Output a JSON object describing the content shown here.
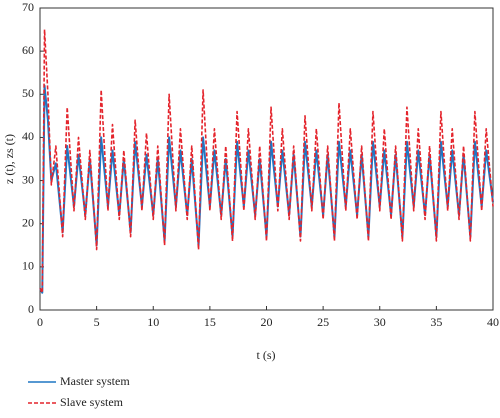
{
  "chart_data": {
    "type": "line",
    "xlabel": "t (s)",
    "ylabel": "z (t), zs (t)",
    "x": [
      0,
      0.2,
      0.4,
      0.7,
      1,
      1.4,
      2,
      2.4,
      3,
      3.4,
      4,
      4.4,
      5,
      5.4,
      6,
      6.4,
      7,
      7.4,
      8,
      8.4,
      9,
      9.4,
      10,
      10.4,
      11,
      11.4,
      12,
      12.4,
      13,
      13.4,
      14,
      14.4,
      15,
      15.4,
      16,
      16.4,
      17,
      17.4,
      18,
      18.4,
      19,
      19.4,
      20,
      20.4,
      21,
      21.4,
      22,
      22.4,
      23,
      23.4,
      24,
      24.4,
      25,
      25.4,
      26,
      26.4,
      27,
      27.4,
      28,
      28.4,
      29,
      29.4,
      30,
      30.4,
      31,
      31.4,
      32,
      32.4,
      33,
      33.4,
      34,
      34.4,
      35,
      35.4,
      36,
      36.4,
      37,
      37.4,
      38,
      38.4,
      39,
      39.4,
      40
    ],
    "series": [
      {
        "name": "Master system",
        "color": "#1f77c4",
        "dash": false,
        "values": [
          5,
          4,
          52,
          44,
          30,
          34,
          18,
          38,
          24,
          36,
          22,
          35,
          15,
          40,
          24,
          37,
          22,
          35,
          18,
          39,
          24,
          36,
          22,
          35,
          16,
          40,
          24,
          37,
          22,
          35,
          15,
          40,
          24,
          37,
          22,
          35,
          17,
          39,
          24,
          37,
          22,
          35,
          17,
          39,
          24,
          37,
          22,
          36,
          17,
          39,
          24,
          37,
          22,
          36,
          17,
          39,
          24,
          37,
          22,
          36,
          17,
          39,
          24,
          37,
          22,
          36,
          17,
          39,
          24,
          37,
          22,
          36,
          17,
          39,
          24,
          37,
          22,
          36,
          17,
          39,
          24,
          37,
          25
        ]
      },
      {
        "name": "Slave system",
        "color": "#e4242c",
        "dash": true,
        "values": [
          5,
          4,
          65,
          50,
          29,
          38,
          17,
          47,
          23,
          40,
          21,
          37,
          14,
          51,
          23,
          43,
          21,
          37,
          17,
          44,
          23,
          41,
          21,
          38,
          15,
          50,
          23,
          42,
          21,
          38,
          14,
          51,
          23,
          42,
          21,
          38,
          16,
          46,
          23,
          42,
          21,
          38,
          16,
          47,
          23,
          42,
          21,
          38,
          16,
          45,
          23,
          42,
          21,
          38,
          16,
          48,
          23,
          42,
          21,
          38,
          16,
          46,
          23,
          42,
          21,
          38,
          16,
          47,
          23,
          42,
          21,
          38,
          16,
          46,
          23,
          42,
          21,
          38,
          16,
          46,
          23,
          42,
          24
        ]
      }
    ],
    "xlim": [
      0,
      40
    ],
    "xticks": [
      0,
      5,
      10,
      15,
      20,
      25,
      30,
      35,
      40
    ],
    "ylim": [
      0,
      70
    ],
    "yticks": [
      0,
      10,
      20,
      30,
      40,
      50,
      60,
      70
    ],
    "legend": "bottom-left"
  }
}
